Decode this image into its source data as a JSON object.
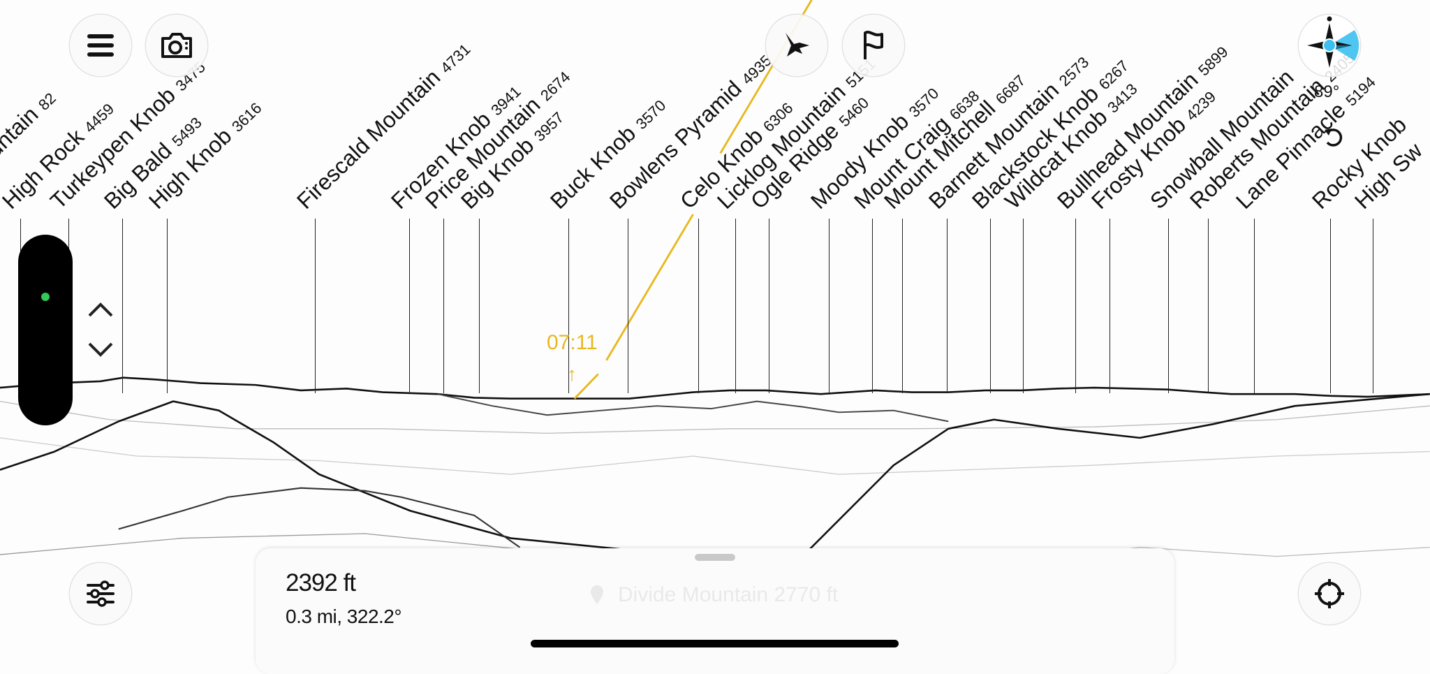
{
  "peaks": [
    {
      "name": "den Mountain",
      "elevation": "82"
    },
    {
      "name": "High Rock",
      "elevation": "4459"
    },
    {
      "name": "Turkeypen Knob",
      "elevation": "3475"
    },
    {
      "name": "Big Bald",
      "elevation": "5493"
    },
    {
      "name": "High Knob",
      "elevation": "3616"
    },
    {
      "name": "Firescald Mountain",
      "elevation": "4731"
    },
    {
      "name": "Frozen Knob",
      "elevation": "3941"
    },
    {
      "name": "Price Mountain",
      "elevation": "2674"
    },
    {
      "name": "Big Knob",
      "elevation": "3957"
    },
    {
      "name": "Buck Knob",
      "elevation": "3570"
    },
    {
      "name": "Bowlens Pyramid",
      "elevation": "4935"
    },
    {
      "name": "Celo Knob",
      "elevation": "6306"
    },
    {
      "name": "Licklog Mountain",
      "elevation": "5151"
    },
    {
      "name": "Ogle Ridge",
      "elevation": "5460"
    },
    {
      "name": "Moody Knob",
      "elevation": "3570"
    },
    {
      "name": "Mount Craig",
      "elevation": "6638"
    },
    {
      "name": "Mount Mitchell",
      "elevation": "6687"
    },
    {
      "name": "Barnett Mountain",
      "elevation": "2573"
    },
    {
      "name": "Blackstock Knob",
      "elevation": "6267"
    },
    {
      "name": "Wildcat Knob",
      "elevation": "3413"
    },
    {
      "name": "Bullhead Mountain",
      "elevation": "5899"
    },
    {
      "name": "Frosty Knob",
      "elevation": "4239"
    },
    {
      "name": "Snowball Mountain",
      "elevation": ""
    },
    {
      "name": "Roberts Mountain",
      "elevation": "2405"
    },
    {
      "name": "Lane Pinnacle",
      "elevation": "5194"
    },
    {
      "name": "Rocky Knob",
      "elevation": ""
    },
    {
      "name": "High Sw",
      "elevation": ""
    }
  ],
  "sun": {
    "time": "07:11",
    "arrow": "↑",
    "color": "#e8b820"
  },
  "compass": {
    "heading": "89°",
    "accent": "#3cc0ef"
  },
  "panel": {
    "elevation": "2392 ft",
    "distance_bearing": "0.3 mi, 322.2°",
    "place": "Divide Mountain 2770 ft"
  },
  "icons": [
    "menu-icon",
    "camera-icon",
    "compass-icon",
    "rotate-icon",
    "chevron-up-icon",
    "chevron-down-icon",
    "sliders-icon",
    "bird-icon",
    "flag-icon",
    "crosshair-icon",
    "pin-icon"
  ]
}
